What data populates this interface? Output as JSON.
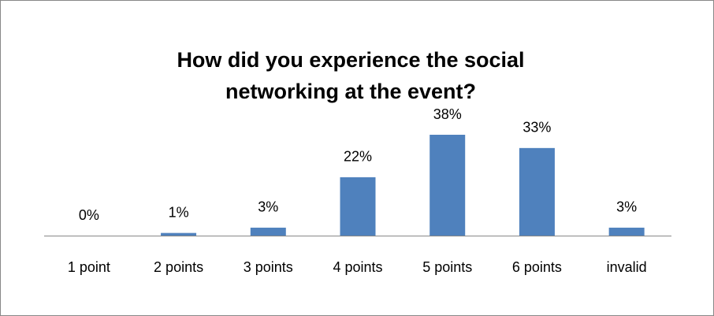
{
  "chart_data": {
    "type": "bar",
    "title": "How did you experience the social networking at the event?",
    "categories": [
      "1 point",
      "2 points",
      "3 points",
      "4 points",
      "5 points",
      "6 points",
      "invalid"
    ],
    "values": [
      0,
      1,
      3,
      22,
      38,
      33,
      3
    ],
    "value_labels": [
      "0%",
      "1%",
      "3%",
      "22%",
      "38%",
      "33%",
      "3%"
    ],
    "color": "#4f81bd"
  }
}
